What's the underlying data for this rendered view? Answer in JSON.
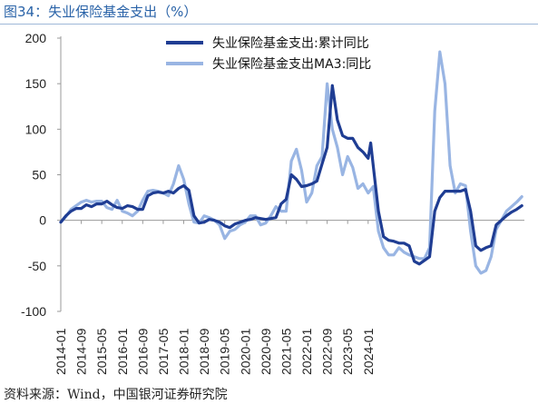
{
  "header": {
    "title": "图34：失业保险基金支出（%）"
  },
  "footer": {
    "source": "资料来源：Wind，中国银河证券研究院"
  },
  "colors": {
    "series1": "#1f3d93",
    "series2": "#99b5e3",
    "axis": "#9a9a9a",
    "title": "#2a63a8"
  },
  "chart_data": {
    "type": "line",
    "title": "图34：失业保险基金支出（%）",
    "xlabel": "",
    "ylabel": "",
    "ylim": [
      -100,
      200
    ],
    "y_ticks": [
      -100,
      -50,
      0,
      50,
      100,
      150,
      200
    ],
    "x_tick_labels": [
      "2014-01",
      "2014-09",
      "2015-05",
      "2016-01",
      "2016-09",
      "2017-05",
      "2018-01",
      "2018-09",
      "2019-05",
      "2020-01",
      "2020-09",
      "2021-05",
      "2022-01",
      "2022-09",
      "2023-05",
      "2024-01"
    ],
    "grid": false,
    "legend_position": "top",
    "series": [
      {
        "name": "失业保险基金支出:累计同比",
        "values": [
          [
            0,
            -2
          ],
          [
            2,
            5
          ],
          [
            4,
            10
          ],
          [
            6,
            13
          ],
          [
            8,
            13
          ],
          [
            10,
            17
          ],
          [
            12,
            15
          ],
          [
            14,
            18
          ],
          [
            16,
            18
          ],
          [
            18,
            21
          ],
          [
            20,
            17
          ],
          [
            22,
            14
          ],
          [
            24,
            13
          ],
          [
            26,
            16
          ],
          [
            28,
            15
          ],
          [
            30,
            12
          ],
          [
            32,
            12
          ],
          [
            34,
            27
          ],
          [
            36,
            30
          ],
          [
            38,
            31
          ],
          [
            40,
            30
          ],
          [
            42,
            32
          ],
          [
            44,
            30
          ],
          [
            46,
            35
          ],
          [
            48,
            38
          ],
          [
            50,
            33
          ],
          [
            52,
            5
          ],
          [
            54,
            -3
          ],
          [
            56,
            -2
          ],
          [
            58,
            1
          ],
          [
            60,
            0
          ],
          [
            62,
            -2
          ],
          [
            64,
            -6
          ],
          [
            66,
            -8
          ],
          [
            68,
            -4
          ],
          [
            70,
            -2
          ],
          [
            72,
            0
          ],
          [
            74,
            1
          ],
          [
            76,
            3
          ],
          [
            78,
            2
          ],
          [
            80,
            1
          ],
          [
            82,
            2
          ],
          [
            84,
            3
          ],
          [
            86,
            18
          ],
          [
            88,
            23
          ],
          [
            90,
            50
          ],
          [
            92,
            45
          ],
          [
            94,
            37
          ],
          [
            96,
            38
          ],
          [
            98,
            40
          ],
          [
            100,
            43
          ],
          [
            102,
            62
          ],
          [
            104,
            80
          ],
          [
            106,
            148
          ],
          [
            108,
            110
          ],
          [
            110,
            93
          ],
          [
            112,
            90
          ],
          [
            114,
            90
          ],
          [
            116,
            80
          ],
          [
            118,
            75
          ],
          [
            120,
            68
          ],
          [
            121,
            85
          ],
          [
            122,
            60
          ],
          [
            124,
            10
          ],
          [
            126,
            -18
          ],
          [
            128,
            -22
          ],
          [
            130,
            -23
          ],
          [
            132,
            -25
          ],
          [
            134,
            -25
          ],
          [
            136,
            -28
          ],
          [
            138,
            -45
          ],
          [
            140,
            -48
          ],
          [
            142,
            -44
          ],
          [
            144,
            -40
          ],
          [
            146,
            10
          ],
          [
            148,
            25
          ],
          [
            150,
            32
          ],
          [
            152,
            32
          ],
          [
            154,
            32
          ],
          [
            156,
            32
          ],
          [
            158,
            34
          ],
          [
            160,
            10
          ],
          [
            162,
            -28
          ],
          [
            164,
            -33
          ],
          [
            166,
            -30
          ],
          [
            168,
            -28
          ],
          [
            170,
            -5
          ],
          [
            172,
            0
          ],
          [
            174,
            5
          ],
          [
            176,
            9
          ],
          [
            178,
            12
          ],
          [
            180,
            16
          ]
        ]
      },
      {
        "name": "失业保险基金支出MA3:同比",
        "values": [
          [
            0,
            -2
          ],
          [
            2,
            4
          ],
          [
            4,
            12
          ],
          [
            6,
            16
          ],
          [
            8,
            20
          ],
          [
            10,
            22
          ],
          [
            12,
            20
          ],
          [
            14,
            21
          ],
          [
            16,
            21
          ],
          [
            18,
            14
          ],
          [
            20,
            12
          ],
          [
            22,
            22
          ],
          [
            24,
            10
          ],
          [
            26,
            8
          ],
          [
            28,
            5
          ],
          [
            30,
            10
          ],
          [
            32,
            22
          ],
          [
            34,
            32
          ],
          [
            36,
            33
          ],
          [
            38,
            32
          ],
          [
            40,
            30
          ],
          [
            42,
            27
          ],
          [
            44,
            40
          ],
          [
            46,
            60
          ],
          [
            48,
            45
          ],
          [
            50,
            18
          ],
          [
            52,
            -2
          ],
          [
            54,
            -3
          ],
          [
            56,
            5
          ],
          [
            58,
            3
          ],
          [
            60,
            0
          ],
          [
            62,
            -5
          ],
          [
            64,
            -20
          ],
          [
            66,
            -12
          ],
          [
            68,
            -10
          ],
          [
            70,
            -5
          ],
          [
            72,
            -2
          ],
          [
            74,
            5
          ],
          [
            76,
            5
          ],
          [
            78,
            -5
          ],
          [
            80,
            -3
          ],
          [
            82,
            5
          ],
          [
            84,
            15
          ],
          [
            86,
            10
          ],
          [
            88,
            10
          ],
          [
            90,
            65
          ],
          [
            92,
            78
          ],
          [
            94,
            55
          ],
          [
            96,
            20
          ],
          [
            98,
            30
          ],
          [
            100,
            60
          ],
          [
            102,
            70
          ],
          [
            104,
            150
          ],
          [
            106,
            100
          ],
          [
            108,
            80
          ],
          [
            110,
            50
          ],
          [
            112,
            70
          ],
          [
            114,
            58
          ],
          [
            116,
            35
          ],
          [
            118,
            40
          ],
          [
            120,
            30
          ],
          [
            122,
            37
          ],
          [
            124,
            -12
          ],
          [
            126,
            -30
          ],
          [
            128,
            -38
          ],
          [
            130,
            -38
          ],
          [
            132,
            -30
          ],
          [
            134,
            -35
          ],
          [
            136,
            -38
          ],
          [
            138,
            -40
          ],
          [
            140,
            -42
          ],
          [
            142,
            -42
          ],
          [
            144,
            -30
          ],
          [
            146,
            120
          ],
          [
            148,
            185
          ],
          [
            150,
            150
          ],
          [
            152,
            60
          ],
          [
            154,
            30
          ],
          [
            156,
            40
          ],
          [
            158,
            38
          ],
          [
            160,
            -12
          ],
          [
            162,
            -50
          ],
          [
            164,
            -58
          ],
          [
            166,
            -55
          ],
          [
            168,
            -40
          ],
          [
            170,
            -10
          ],
          [
            172,
            0
          ],
          [
            174,
            10
          ],
          [
            176,
            15
          ],
          [
            178,
            20
          ],
          [
            180,
            26
          ]
        ]
      }
    ]
  }
}
